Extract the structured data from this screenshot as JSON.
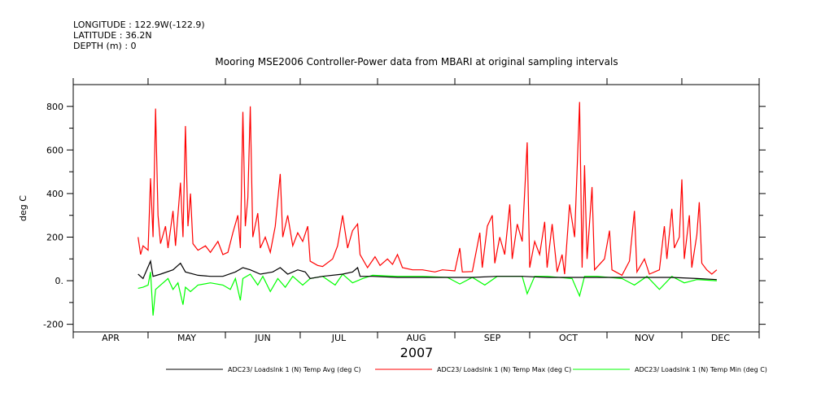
{
  "header": {
    "longitude": "LONGITUDE : 122.9W(-122.9)",
    "latitude": "LATITUDE : 36.2N",
    "depth": "DEPTH (m) : 0"
  },
  "chart_data": {
    "type": "line",
    "title": "Mooring MSE2006 Controller-Power data from MBARI at original sampling intervals",
    "ylabel": "deg C",
    "xlabel": "2007",
    "x_units": "days since Apr 1 2007",
    "xlim": [
      0,
      275
    ],
    "ylim": [
      -235,
      900
    ],
    "yticks": [
      -200,
      0,
      200,
      400,
      600,
      800
    ],
    "ytick_labels": [
      "-200",
      "0.",
      "200",
      "400",
      "600",
      "800"
    ],
    "month_labels": [
      "APR",
      "MAY",
      "JUN",
      "JUL",
      "AUG",
      "SEP",
      "OCT",
      "NOV",
      "DEC"
    ],
    "month_starts": [
      0,
      30,
      61,
      91,
      122,
      153,
      183,
      214,
      244,
      275
    ],
    "legend_placement": "bottom",
    "series": [
      {
        "name": "ADC23/ Loadslnk 1 (N) Temp Avg (deg C)",
        "color": "#000000",
        "points": [
          [
            26,
            30
          ],
          [
            28,
            10
          ],
          [
            31,
            90
          ],
          [
            32,
            20
          ],
          [
            35,
            30
          ],
          [
            40,
            50
          ],
          [
            43,
            80
          ],
          [
            45,
            40
          ],
          [
            50,
            25
          ],
          [
            55,
            20
          ],
          [
            60,
            20
          ],
          [
            65,
            40
          ],
          [
            68,
            60
          ],
          [
            71,
            50
          ],
          [
            75,
            30
          ],
          [
            80,
            40
          ],
          [
            83,
            60
          ],
          [
            86,
            30
          ],
          [
            90,
            50
          ],
          [
            93,
            40
          ],
          [
            95,
            10
          ],
          [
            100,
            20
          ],
          [
            108,
            30
          ],
          [
            112,
            40
          ],
          [
            114,
            60
          ],
          [
            115,
            20
          ],
          [
            120,
            20
          ],
          [
            130,
            15
          ],
          [
            140,
            15
          ],
          [
            150,
            15
          ],
          [
            160,
            15
          ],
          [
            170,
            20
          ],
          [
            180,
            20
          ],
          [
            190,
            15
          ],
          [
            200,
            15
          ],
          [
            210,
            15
          ],
          [
            220,
            15
          ],
          [
            230,
            15
          ],
          [
            240,
            15
          ],
          [
            250,
            10
          ],
          [
            258,
            5
          ]
        ]
      },
      {
        "name": "ADC23/ Loadslnk 1 (N) Temp Max (deg C)",
        "color": "#ff0000",
        "points": [
          [
            26,
            200
          ],
          [
            27,
            120
          ],
          [
            28,
            160
          ],
          [
            30,
            140
          ],
          [
            31,
            470
          ],
          [
            32,
            200
          ],
          [
            33,
            790
          ],
          [
            34,
            300
          ],
          [
            35,
            170
          ],
          [
            37,
            250
          ],
          [
            38,
            150
          ],
          [
            40,
            320
          ],
          [
            41,
            160
          ],
          [
            43,
            450
          ],
          [
            44,
            200
          ],
          [
            45,
            710
          ],
          [
            46,
            250
          ],
          [
            47,
            400
          ],
          [
            48,
            170
          ],
          [
            50,
            140
          ],
          [
            53,
            160
          ],
          [
            55,
            130
          ],
          [
            58,
            180
          ],
          [
            60,
            120
          ],
          [
            62,
            130
          ],
          [
            64,
            220
          ],
          [
            66,
            300
          ],
          [
            67,
            150
          ],
          [
            68,
            775
          ],
          [
            69,
            250
          ],
          [
            70,
            380
          ],
          [
            71,
            800
          ],
          [
            72,
            200
          ],
          [
            74,
            310
          ],
          [
            75,
            150
          ],
          [
            77,
            200
          ],
          [
            79,
            130
          ],
          [
            81,
            250
          ],
          [
            83,
            490
          ],
          [
            84,
            200
          ],
          [
            86,
            300
          ],
          [
            88,
            160
          ],
          [
            90,
            220
          ],
          [
            92,
            180
          ],
          [
            94,
            250
          ],
          [
            95,
            90
          ],
          [
            98,
            70
          ],
          [
            100,
            65
          ],
          [
            104,
            100
          ],
          [
            106,
            160
          ],
          [
            108,
            300
          ],
          [
            110,
            150
          ],
          [
            112,
            230
          ],
          [
            114,
            260
          ],
          [
            115,
            120
          ],
          [
            118,
            60
          ],
          [
            121,
            110
          ],
          [
            123,
            70
          ],
          [
            126,
            100
          ],
          [
            128,
            75
          ],
          [
            130,
            120
          ],
          [
            132,
            60
          ],
          [
            136,
            50
          ],
          [
            140,
            50
          ],
          [
            145,
            40
          ],
          [
            148,
            50
          ],
          [
            153,
            45
          ],
          [
            155,
            150
          ],
          [
            156,
            40
          ],
          [
            160,
            42
          ],
          [
            163,
            220
          ],
          [
            164,
            60
          ],
          [
            166,
            250
          ],
          [
            168,
            300
          ],
          [
            169,
            80
          ],
          [
            171,
            200
          ],
          [
            173,
            120
          ],
          [
            175,
            350
          ],
          [
            176,
            100
          ],
          [
            178,
            260
          ],
          [
            180,
            180
          ],
          [
            182,
            635
          ],
          [
            183,
            60
          ],
          [
            185,
            180
          ],
          [
            187,
            120
          ],
          [
            189,
            270
          ],
          [
            190,
            60
          ],
          [
            192,
            260
          ],
          [
            194,
            40
          ],
          [
            196,
            120
          ],
          [
            197,
            30
          ],
          [
            199,
            350
          ],
          [
            201,
            200
          ],
          [
            203,
            820
          ],
          [
            204,
            60
          ],
          [
            205,
            530
          ],
          [
            206,
            100
          ],
          [
            208,
            430
          ],
          [
            209,
            50
          ],
          [
            213,
            100
          ],
          [
            215,
            230
          ],
          [
            216,
            50
          ],
          [
            220,
            25
          ],
          [
            223,
            90
          ],
          [
            225,
            320
          ],
          [
            226,
            40
          ],
          [
            229,
            100
          ],
          [
            231,
            30
          ],
          [
            235,
            50
          ],
          [
            237,
            250
          ],
          [
            238,
            100
          ],
          [
            240,
            330
          ],
          [
            241,
            150
          ],
          [
            243,
            200
          ],
          [
            244,
            465
          ],
          [
            245,
            100
          ],
          [
            247,
            300
          ],
          [
            248,
            60
          ],
          [
            250,
            210
          ],
          [
            251,
            360
          ],
          [
            252,
            80
          ],
          [
            254,
            50
          ],
          [
            256,
            30
          ],
          [
            258,
            50
          ]
        ]
      },
      {
        "name": "ADC23/ Loadslnk 1 (N) Temp Min (deg C)",
        "color": "#00ff00",
        "points": [
          [
            26,
            -35
          ],
          [
            28,
            -30
          ],
          [
            30,
            -20
          ],
          [
            31,
            40
          ],
          [
            32,
            -160
          ],
          [
            33,
            -40
          ],
          [
            35,
            -20
          ],
          [
            38,
            10
          ],
          [
            40,
            -40
          ],
          [
            42,
            -10
          ],
          [
            44,
            -110
          ],
          [
            45,
            -30
          ],
          [
            47,
            -50
          ],
          [
            50,
            -20
          ],
          [
            55,
            -10
          ],
          [
            60,
            -20
          ],
          [
            63,
            -40
          ],
          [
            65,
            10
          ],
          [
            67,
            -90
          ],
          [
            68,
            10
          ],
          [
            71,
            30
          ],
          [
            74,
            -20
          ],
          [
            76,
            20
          ],
          [
            79,
            -50
          ],
          [
            82,
            10
          ],
          [
            85,
            -30
          ],
          [
            88,
            20
          ],
          [
            92,
            -20
          ],
          [
            95,
            10
          ],
          [
            100,
            20
          ],
          [
            105,
            -20
          ],
          [
            108,
            30
          ],
          [
            112,
            -10
          ],
          [
            116,
            10
          ],
          [
            120,
            25
          ],
          [
            130,
            20
          ],
          [
            140,
            20
          ],
          [
            150,
            15
          ],
          [
            155,
            -15
          ],
          [
            160,
            15
          ],
          [
            165,
            -20
          ],
          [
            170,
            20
          ],
          [
            180,
            20
          ],
          [
            182,
            -60
          ],
          [
            185,
            20
          ],
          [
            190,
            20
          ],
          [
            200,
            10
          ],
          [
            203,
            -70
          ],
          [
            205,
            20
          ],
          [
            210,
            20
          ],
          [
            220,
            10
          ],
          [
            225,
            -20
          ],
          [
            230,
            20
          ],
          [
            235,
            -40
          ],
          [
            240,
            20
          ],
          [
            245,
            -10
          ],
          [
            250,
            5
          ],
          [
            258,
            0
          ]
        ]
      }
    ]
  }
}
